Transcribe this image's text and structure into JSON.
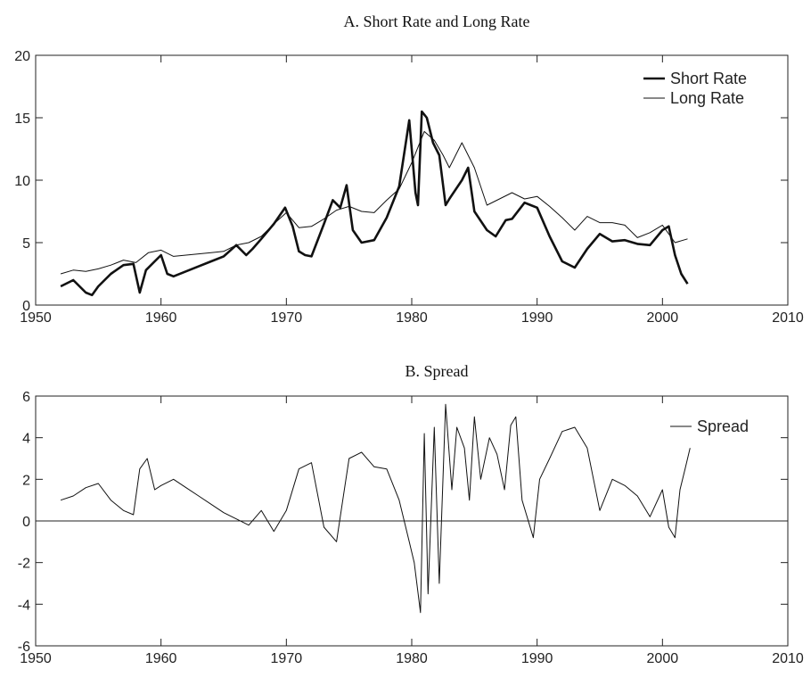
{
  "chart_data": [
    {
      "type": "line",
      "title": "A. Short Rate and Long Rate",
      "xlim": [
        1950,
        2010
      ],
      "ylim": [
        0,
        20
      ],
      "xticks": [
        1950,
        1960,
        1970,
        1980,
        1990,
        2000,
        2010
      ],
      "yticks": [
        0,
        5,
        10,
        15,
        20
      ],
      "legend_position": "top-right",
      "grid": false,
      "series": [
        {
          "name": "Short Rate",
          "color": "#111111",
          "width": "thick",
          "x": [
            1952,
            1953,
            1954,
            1954.5,
            1955,
            1956,
            1957,
            1957.8,
            1958.3,
            1958.8,
            1959.5,
            1960,
            1960.5,
            1961,
            1962,
            1963,
            1964,
            1965,
            1966,
            1966.8,
            1967.3,
            1968,
            1969,
            1969.9,
            1970.5,
            1971,
            1971.5,
            1972,
            1973,
            1973.7,
            1974.3,
            1974.8,
            1975.3,
            1976,
            1977,
            1978,
            1979,
            1979.8,
            1980.3,
            1980.5,
            1980.8,
            1981.2,
            1981.7,
            1982.2,
            1982.7,
            1983,
            1984,
            1984.5,
            1985,
            1986,
            1986.7,
            1987.5,
            1988,
            1989,
            1989.5,
            1990,
            1991,
            1992,
            1993,
            1994,
            1995,
            1996,
            1997,
            1998,
            1999,
            2000,
            2000.5,
            2001,
            2001.5,
            2002
          ],
          "y": [
            1.5,
            2.0,
            1.0,
            0.8,
            1.5,
            2.5,
            3.2,
            3.3,
            1.0,
            2.8,
            3.5,
            4.0,
            2.5,
            2.3,
            2.7,
            3.1,
            3.5,
            3.9,
            4.8,
            4.0,
            4.5,
            5.3,
            6.5,
            7.8,
            6.3,
            4.3,
            4.0,
            3.9,
            6.5,
            8.4,
            7.8,
            9.6,
            6.0,
            5.0,
            5.2,
            7.0,
            9.5,
            14.8,
            9.0,
            8.0,
            15.5,
            15.0,
            13.0,
            12.0,
            8.0,
            8.5,
            10.0,
            11.0,
            7.5,
            6.0,
            5.5,
            6.8,
            6.9,
            8.2,
            8.0,
            7.8,
            5.5,
            3.5,
            3.0,
            4.5,
            5.7,
            5.1,
            5.2,
            4.9,
            4.8,
            6.0,
            6.3,
            4.0,
            2.5,
            1.7
          ]
        },
        {
          "name": "Long Rate",
          "color": "#111111",
          "width": "thin",
          "x": [
            1952,
            1953,
            1954,
            1955,
            1956,
            1957,
            1958,
            1959,
            1960,
            1961,
            1962,
            1963,
            1964,
            1965,
            1966,
            1967,
            1968,
            1969,
            1970,
            1971,
            1972,
            1973,
            1974,
            1975,
            1976,
            1977,
            1978,
            1979,
            1980,
            1981,
            1981.8,
            1982.5,
            1983,
            1984,
            1985,
            1986,
            1987,
            1988,
            1989,
            1990,
            1991,
            1992,
            1993,
            1994,
            1995,
            1996,
            1997,
            1998,
            1999,
            2000,
            2001,
            2002
          ],
          "y": [
            2.5,
            2.8,
            2.7,
            2.9,
            3.2,
            3.6,
            3.4,
            4.2,
            4.4,
            3.9,
            4.0,
            4.1,
            4.2,
            4.3,
            4.8,
            5.0,
            5.5,
            6.5,
            7.4,
            6.2,
            6.3,
            6.9,
            7.6,
            7.9,
            7.5,
            7.4,
            8.4,
            9.3,
            11.4,
            13.9,
            13.2,
            12.0,
            11.0,
            13.0,
            11.0,
            8.0,
            8.5,
            9.0,
            8.5,
            8.7,
            7.9,
            7.0,
            6.0,
            7.1,
            6.6,
            6.6,
            6.4,
            5.4,
            5.8,
            6.4,
            5.0,
            5.3
          ]
        }
      ]
    },
    {
      "type": "line",
      "title": "B. Spread",
      "xlim": [
        1950,
        2010
      ],
      "ylim": [
        -6,
        6
      ],
      "xticks": [
        1950,
        1960,
        1970,
        1980,
        1990,
        2000,
        2010
      ],
      "yticks": [
        -6,
        -4,
        -2,
        0,
        2,
        4,
        6
      ],
      "zero_line": true,
      "legend_position": "top-right",
      "grid": false,
      "series": [
        {
          "name": "Spread",
          "color": "#111111",
          "width": "thin",
          "x": [
            1952,
            1953,
            1954,
            1955,
            1956,
            1957,
            1957.8,
            1958.3,
            1958.9,
            1959.5,
            1960,
            1961,
            1962,
            1963,
            1964,
            1965,
            1966,
            1967,
            1968,
            1969,
            1970,
            1971,
            1972,
            1973,
            1974,
            1974.5,
            1975,
            1976,
            1977,
            1978,
            1979,
            1979.8,
            1980.2,
            1980.7,
            1981,
            1981.3,
            1981.8,
            1982.2,
            1982.7,
            1983.2,
            1983.6,
            1984.2,
            1984.6,
            1985,
            1985.5,
            1986.2,
            1986.8,
            1987.4,
            1987.9,
            1988.3,
            1988.8,
            1989.3,
            1989.7,
            1990.2,
            1991,
            1992,
            1993,
            1994,
            1995,
            1996,
            1997,
            1998,
            1999,
            2000,
            2000.5,
            2001,
            2001.4,
            2001.8,
            2002.2
          ],
          "y": [
            1.0,
            1.2,
            1.6,
            1.8,
            1.0,
            0.5,
            0.3,
            2.5,
            3.0,
            1.5,
            1.7,
            2.0,
            1.6,
            1.2,
            0.8,
            0.4,
            0.1,
            -0.2,
            0.5,
            -0.5,
            0.5,
            2.5,
            2.8,
            -0.3,
            -1.0,
            1.0,
            3.0,
            3.3,
            2.6,
            2.5,
            1.0,
            -1.0,
            -2.0,
            -4.4,
            4.2,
            -3.5,
            4.5,
            -3.0,
            5.6,
            1.5,
            4.5,
            3.5,
            1.0,
            5.0,
            2.0,
            4.0,
            3.2,
            1.5,
            4.6,
            5.0,
            1.0,
            0.0,
            -0.8,
            2.0,
            3.0,
            4.3,
            4.5,
            3.5,
            0.5,
            2.0,
            1.7,
            1.2,
            0.2,
            1.5,
            -0.3,
            -0.8,
            1.5,
            2.5,
            3.5
          ]
        }
      ]
    }
  ]
}
